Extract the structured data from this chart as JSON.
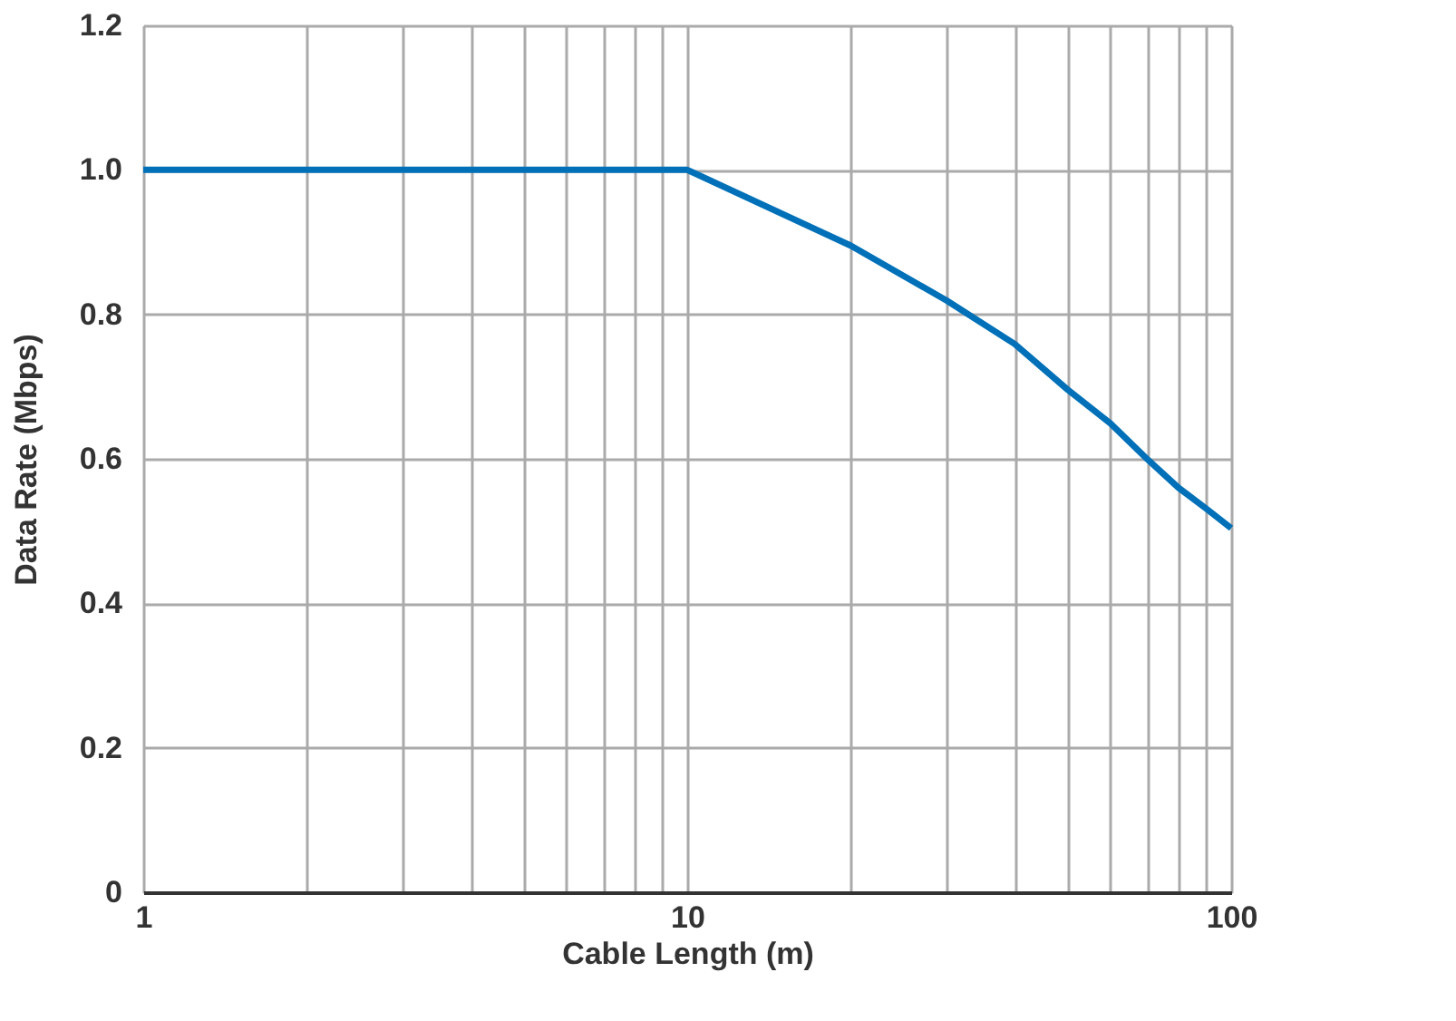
{
  "chart_data": {
    "type": "line",
    "xlabel": "Cable Length (m)",
    "ylabel": "Data Rate (Mbps)",
    "log": "x",
    "grid": true,
    "marker": "none",
    "line_style": "solid",
    "xlim": [
      1,
      100
    ],
    "ylim": [
      0,
      1.2
    ],
    "xticks": [
      1,
      {
        "value": 2,
        "label": null
      },
      {
        "value": 3,
        "label": null
      },
      {
        "value": 4,
        "label": null
      },
      {
        "value": 5,
        "label": null
      },
      {
        "value": 6,
        "label": null
      },
      {
        "value": 7,
        "label": null
      },
      {
        "value": 8,
        "label": null
      },
      {
        "value": 9,
        "label": null
      },
      10,
      {
        "value": 20,
        "label": null
      },
      {
        "value": 30,
        "label": null
      },
      {
        "value": 40,
        "label": null
      },
      {
        "value": 50,
        "label": null
      },
      {
        "value": 60,
        "label": null
      },
      {
        "value": 70,
        "label": null
      },
      {
        "value": 80,
        "label": null
      },
      {
        "value": 90,
        "label": null
      },
      100
    ],
    "yticks": [
      {
        "value": 0,
        "label": "0"
      },
      {
        "value": 0.2,
        "label": "0.2"
      },
      {
        "value": 0.4,
        "label": "0.4"
      },
      {
        "value": 0.6,
        "label": "0.6"
      },
      {
        "value": 0.8,
        "label": "0.8"
      },
      {
        "value": 1.0,
        "label": "1.0"
      },
      {
        "value": 1.2,
        "label": "1.2"
      }
    ],
    "series": [
      {
        "color": "#0070b8",
        "x": [
          1,
          10,
          20,
          30,
          40,
          50,
          60,
          70,
          80,
          90,
          100
        ],
        "values": [
          1.0,
          1.0,
          0.895,
          0.819,
          0.759,
          0.696,
          0.649,
          0.6,
          0.56,
          0.531,
          0.504
        ]
      }
    ]
  }
}
